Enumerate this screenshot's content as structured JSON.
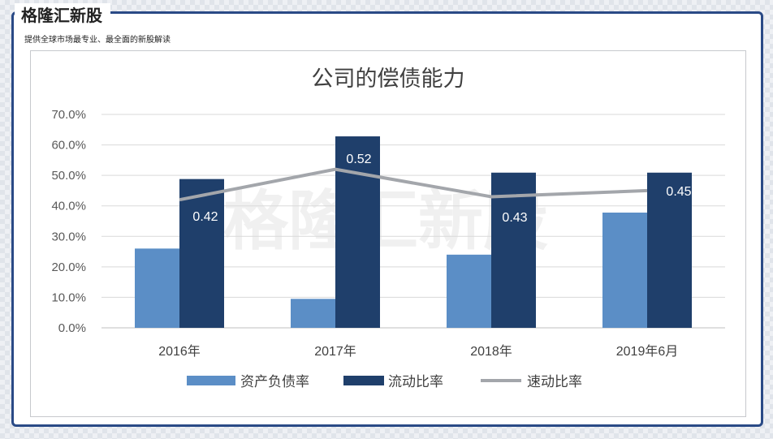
{
  "brand": {
    "title": "格隆汇新股",
    "subtitle": "提供全球市场最专业、最全面的新股解读"
  },
  "watermark": "格隆汇新股",
  "colors": {
    "frame": "#2a4a86",
    "light_bar": "#5b8ec6",
    "dark_bar": "#1f3f6b",
    "line": "#a3a6ab"
  },
  "chart_data": {
    "type": "bar",
    "title": "公司的偿债能力",
    "categories": [
      "2016年",
      "2017年",
      "2018年",
      "2019年6月"
    ],
    "ylim": [
      0,
      70
    ],
    "yticks": [
      "0.0%",
      "10.0%",
      "20.0%",
      "30.0%",
      "40.0%",
      "50.0%",
      "60.0%",
      "70.0%"
    ],
    "series": [
      {
        "name": "资产负债率",
        "kind": "bar",
        "color": "#5b8ec6",
        "values": [
          26.0,
          9.5,
          24.0,
          37.8
        ]
      },
      {
        "name": "流动比率",
        "kind": "bar",
        "color": "#1f3f6b",
        "values": [
          48.8,
          62.8,
          50.9,
          50.9
        ]
      },
      {
        "name": "速动比率",
        "kind": "line",
        "color": "#a3a6ab",
        "values": [
          0.42,
          0.52,
          0.43,
          0.45
        ],
        "labels": [
          "0.42",
          "0.52",
          "0.43",
          "0.45"
        ]
      }
    ],
    "grid": true,
    "legend": "bottom"
  }
}
